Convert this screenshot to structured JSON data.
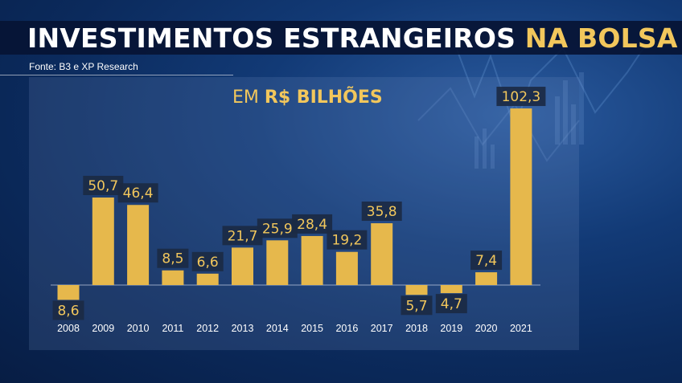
{
  "header": {
    "title_main": "INVESTIMENTOS ESTRANGEIROS",
    "title_accent": "NA BOLSA",
    "source": "Fonte: B3 e XP Research",
    "unit_prefix": "EM",
    "unit_bold": "R$ BILHÕES"
  },
  "colors": {
    "bar": "#e6b84c",
    "accent": "#f2c75c",
    "label_bg": "#1b2a44",
    "title_bg": "#06143a"
  },
  "chart_data": {
    "type": "bar",
    "title": "INVESTIMENTOS ESTRANGEIROS NA BOLSA",
    "subtitle": "EM R$ BILHÕES",
    "categories": [
      "2008",
      "2009",
      "2010",
      "2011",
      "2012",
      "2013",
      "2014",
      "2015",
      "2016",
      "2017",
      "2018",
      "2019",
      "2020",
      "2021"
    ],
    "values": [
      -8.6,
      50.7,
      46.4,
      8.5,
      6.6,
      21.7,
      25.9,
      28.4,
      19.2,
      35.8,
      -5.7,
      -4.7,
      7.4,
      102.3
    ],
    "labels": [
      "8,6",
      "50,7",
      "46,4",
      "8,5",
      "6,6",
      "21,7",
      "25,9",
      "28,4",
      "19,2",
      "35,8",
      "5,7",
      "4,7",
      "7,4",
      "102,3"
    ],
    "ylim": [
      -8.6,
      102.3
    ],
    "grid": false,
    "legend": "none"
  }
}
